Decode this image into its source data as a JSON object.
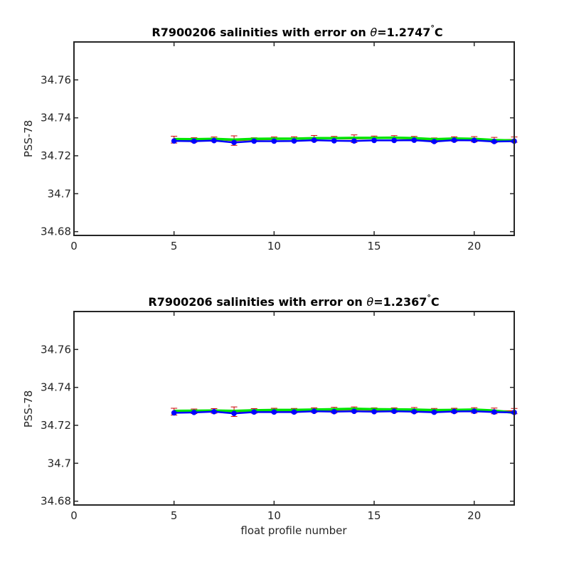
{
  "colors": {
    "error_bar": "#cc0000",
    "series_red": "#ff0000",
    "series_green": "#00e600",
    "series_blue": "#0000ff"
  },
  "chart_data": [
    {
      "type": "line",
      "title_main": "R7900206 salinities with error on ",
      "title_theta": "θ",
      "title_value": "=1.2747",
      "title_unit": "C",
      "xlabel": "",
      "ylabel": "PSS-78",
      "xlim": [
        0,
        22
      ],
      "ylim": [
        34.678,
        34.78
      ],
      "xticks": [
        0,
        5,
        10,
        15,
        20
      ],
      "yticks": [
        34.68,
        34.7,
        34.72,
        34.74,
        34.76
      ],
      "ytick_labels": [
        "34.68",
        "34.7",
        "34.72",
        "34.74",
        "34.76"
      ],
      "x": [
        5,
        6,
        7,
        8,
        9,
        10,
        11,
        12,
        13,
        14,
        15,
        16,
        17,
        18,
        19,
        20,
        21,
        22
      ],
      "series": [
        {
          "color": "#ff0000",
          "values": [
            34.7285,
            34.7283,
            34.7287,
            34.728,
            34.7285,
            34.7287,
            34.7288,
            34.7292,
            34.729,
            34.729,
            34.7292,
            34.7292,
            34.729,
            34.7282,
            34.7288,
            34.7287,
            34.7283,
            34.7285
          ]
        },
        {
          "color": "#00e600",
          "values": [
            34.7288,
            34.7287,
            34.7289,
            34.7285,
            34.7289,
            34.729,
            34.729,
            34.7293,
            34.7293,
            34.7294,
            34.7294,
            34.7295,
            34.7293,
            34.7287,
            34.7291,
            34.7289,
            34.7283,
            34.728
          ]
        },
        {
          "color": "#0000ff",
          "values": [
            34.7278,
            34.7277,
            34.728,
            34.727,
            34.7277,
            34.7277,
            34.7278,
            34.7282,
            34.7279,
            34.7278,
            34.7281,
            34.7281,
            34.7282,
            34.7275,
            34.7282,
            34.7281,
            34.7275,
            34.7277
          ]
        }
      ],
      "error": [
        0.0018,
        0.0012,
        0.0012,
        0.0025,
        0.001,
        0.0012,
        0.0012,
        0.0015,
        0.0012,
        0.002,
        0.0012,
        0.0014,
        0.0012,
        0.0012,
        0.0012,
        0.0014,
        0.0014,
        0.0014
      ]
    },
    {
      "type": "line",
      "title_main": "R7900206 salinities with error on ",
      "title_theta": "θ",
      "title_value": "=1.2367",
      "title_unit": "C",
      "xlabel": "float profile number",
      "ylabel": "PSS-78",
      "xlim": [
        0,
        22
      ],
      "ylim": [
        34.678,
        34.78
      ],
      "xticks": [
        0,
        5,
        10,
        15,
        20
      ],
      "yticks": [
        34.68,
        34.7,
        34.72,
        34.74,
        34.76
      ],
      "ytick_labels": [
        "34.68",
        "34.7",
        "34.72",
        "34.74",
        "34.76"
      ],
      "x": [
        5,
        6,
        7,
        8,
        9,
        10,
        11,
        12,
        13,
        14,
        15,
        16,
        17,
        18,
        19,
        20,
        21,
        22
      ],
      "series": [
        {
          "color": "#ff0000",
          "values": [
            34.7272,
            34.7274,
            34.7276,
            34.7272,
            34.7276,
            34.7278,
            34.7277,
            34.728,
            34.728,
            34.7283,
            34.728,
            34.728,
            34.728,
            34.7277,
            34.7278,
            34.7279,
            34.7276,
            34.7275
          ]
        },
        {
          "color": "#00e600",
          "values": [
            34.7276,
            34.7277,
            34.7278,
            34.7276,
            34.7279,
            34.7281,
            34.7281,
            34.7283,
            34.7285,
            34.7287,
            34.7285,
            34.7284,
            34.7283,
            34.728,
            34.7281,
            34.7283,
            34.7278,
            34.7266
          ]
        },
        {
          "color": "#0000ff",
          "values": [
            34.7266,
            34.7268,
            34.7272,
            34.7263,
            34.727,
            34.727,
            34.727,
            34.7274,
            34.7272,
            34.7274,
            34.7272,
            34.7274,
            34.7272,
            34.7269,
            34.7273,
            34.7274,
            34.727,
            34.7268
          ]
        }
      ],
      "error": [
        0.0018,
        0.0012,
        0.0012,
        0.0025,
        0.0012,
        0.0012,
        0.0012,
        0.0012,
        0.0015,
        0.0014,
        0.0012,
        0.0012,
        0.0014,
        0.0012,
        0.0012,
        0.0014,
        0.0015,
        0.0014
      ]
    }
  ]
}
